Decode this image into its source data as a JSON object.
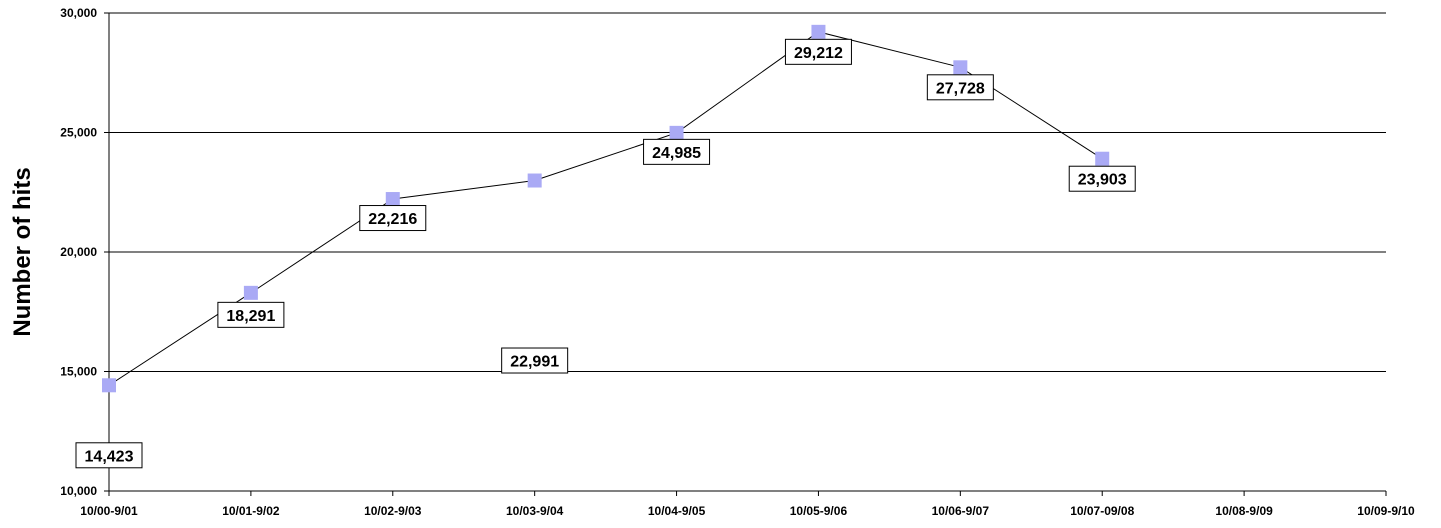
{
  "chart_data": {
    "type": "line",
    "categories": [
      "10/00-9/01",
      "10/01-9/02",
      "10/02-9/03",
      "10/03-9/04",
      "10/04-9/05",
      "10/05-9/06",
      "10/06-9/07",
      "10/07-09/08",
      "10/08-9/09",
      "10/09-9/10"
    ],
    "series": [
      {
        "values": [
          14423,
          18291,
          22216,
          22991,
          24985,
          29212,
          27728,
          23903,
          null,
          null
        ]
      }
    ],
    "data_labels": [
      "14,423",
      "18,291",
      "22,216",
      "22,991",
      "24,985",
      "29,212",
      "27,728",
      "23,903"
    ],
    "xlabel": "",
    "ylabel": "Number of hits",
    "ylim": [
      10000,
      30000
    ],
    "yticks": [
      10000,
      15000,
      20000,
      25000,
      30000
    ],
    "ytick_labels": [
      "10,000",
      "15,000",
      "20,000",
      "25,000",
      "30,000"
    ],
    "grid": true,
    "legend": "none",
    "marker": "square",
    "colors": {
      "marker": "#aaaaf5",
      "line": "#000000",
      "grid": "#000000"
    }
  }
}
